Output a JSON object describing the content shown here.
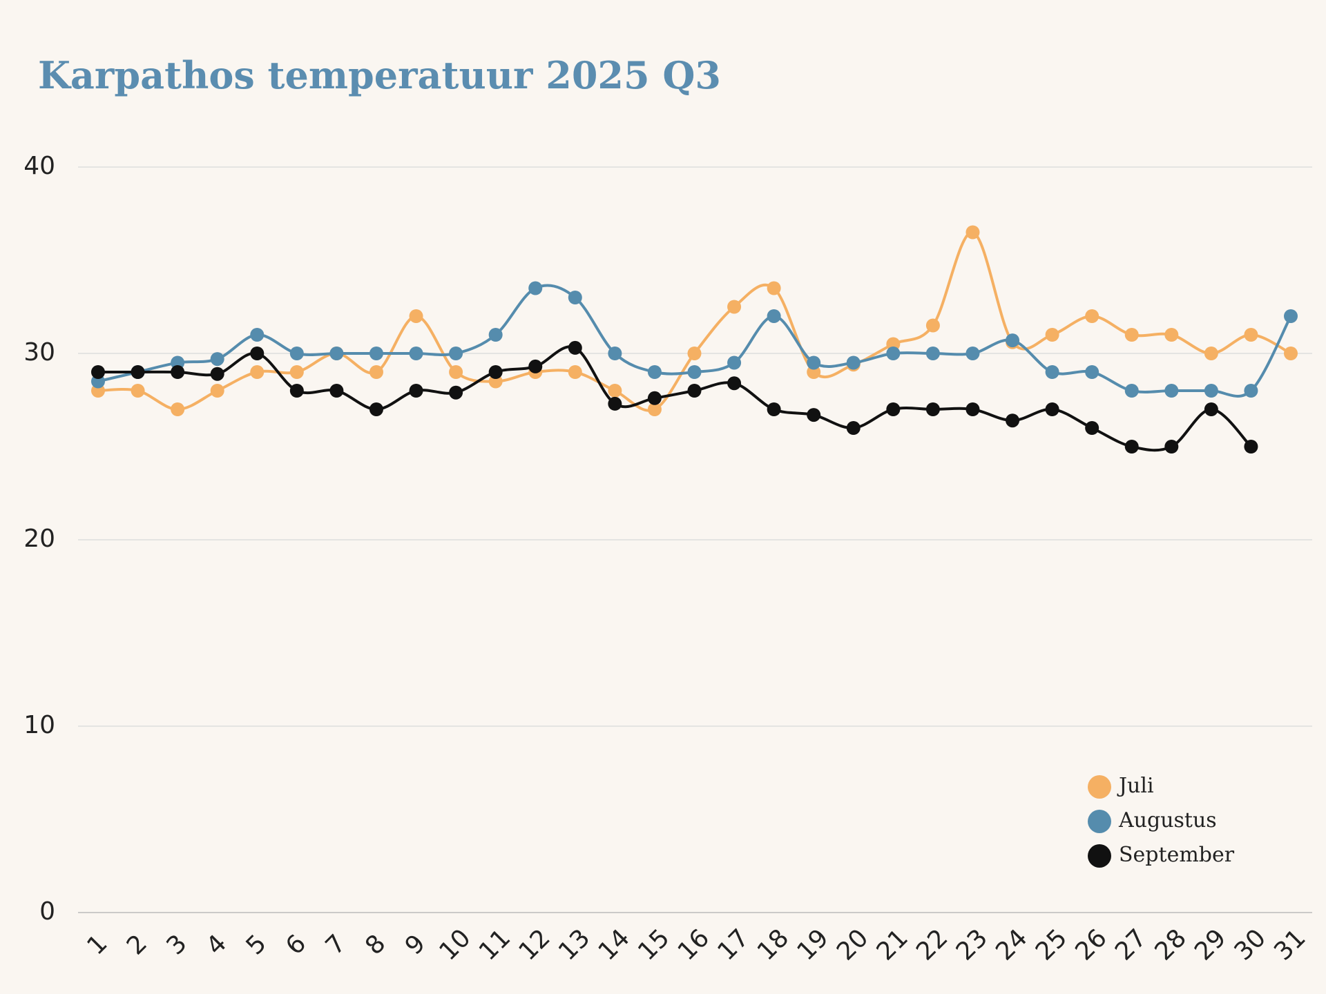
{
  "chart_data": {
    "type": "line",
    "title": "Karpathos temperatuur 2025 Q3",
    "categories": [
      "1",
      "2",
      "3",
      "4",
      "5",
      "6",
      "7",
      "8",
      "9",
      "10",
      "11",
      "12",
      "13",
      "14",
      "15",
      "16",
      "17",
      "18",
      "19",
      "20",
      "21",
      "22",
      "23",
      "24",
      "25",
      "26",
      "27",
      "28",
      "29",
      "30",
      "31"
    ],
    "series": [
      {
        "name": "Juli",
        "color": "#f5b063",
        "values": [
          28,
          28,
          27,
          28,
          29,
          29,
          30,
          29,
          32,
          29,
          28.5,
          29,
          29,
          28,
          27,
          30,
          32.5,
          33.5,
          29,
          29.4,
          30.5,
          31.5,
          36.5,
          30.6,
          31,
          32,
          31,
          31,
          30,
          31,
          30
        ]
      },
      {
        "name": "Augustus",
        "color": "#558cad",
        "values": [
          28.5,
          29,
          29.5,
          29.7,
          31,
          30,
          30,
          30,
          30,
          30,
          31,
          33.5,
          33,
          30,
          29,
          29,
          29.5,
          32,
          29.5,
          29.5,
          30,
          30,
          30,
          30.7,
          29,
          29,
          28,
          28,
          28,
          28,
          32
        ]
      },
      {
        "name": "September",
        "color": "#111111",
        "values": [
          29,
          29,
          29,
          28.9,
          30,
          28,
          28,
          27,
          28,
          27.9,
          29,
          29.3,
          30.3,
          27.3,
          27.6,
          28,
          28.4,
          27,
          26.7,
          26,
          27,
          27,
          27,
          26.4,
          27,
          26,
          25,
          25,
          27,
          25,
          null
        ]
      }
    ],
    "ylim": [
      0,
      40
    ],
    "yticks": [
      0,
      10,
      20,
      30,
      40
    ],
    "grid": true,
    "legend": "lower right"
  }
}
